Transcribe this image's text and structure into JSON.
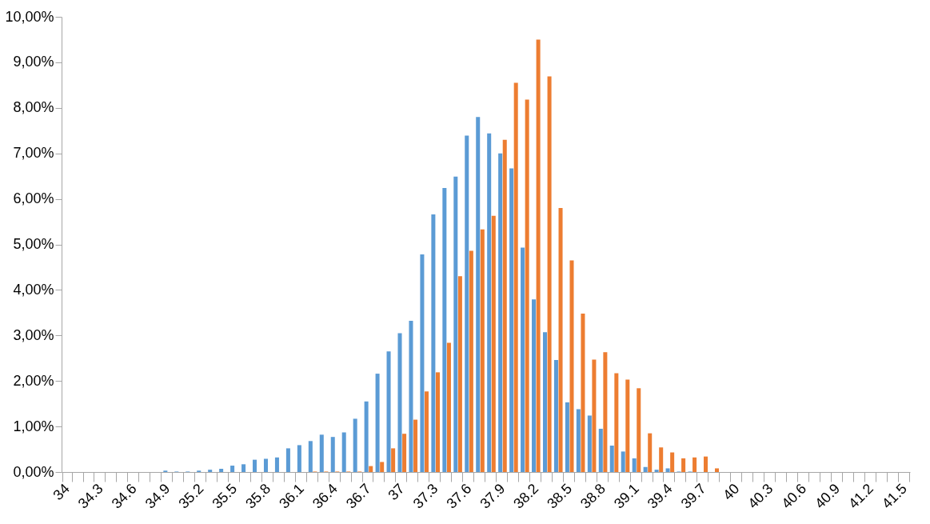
{
  "chart_data": {
    "type": "bar",
    "categories": [
      "34",
      null,
      null,
      "34.3",
      null,
      null,
      "34.6",
      null,
      null,
      "34.9",
      null,
      null,
      "35.2",
      null,
      null,
      "35.5",
      null,
      null,
      "35.8",
      null,
      null,
      "36.1",
      null,
      null,
      "36.4",
      null,
      null,
      "36.7",
      null,
      null,
      "37",
      null,
      null,
      "37.3",
      null,
      null,
      "37.6",
      null,
      null,
      "37.9",
      null,
      null,
      "38.2",
      null,
      null,
      "38.5",
      null,
      null,
      "38.8",
      null,
      null,
      "39.1",
      null,
      null,
      "39.4",
      null,
      null,
      "39.7",
      null,
      null,
      "40",
      null,
      null,
      "40.3",
      null,
      null,
      "40.6",
      null,
      null,
      "40.9",
      null,
      null,
      "41.2",
      null,
      null,
      "41.5"
    ],
    "series": [
      {
        "color": "#5b9bd5",
        "values": [
          null,
          null,
          null,
          null,
          null,
          null,
          null,
          null,
          null,
          0.03,
          0.01,
          0.01,
          0.03,
          0.05,
          0.07,
          0.14,
          0.17,
          0.27,
          0.29,
          0.32,
          0.52,
          0.59,
          0.68,
          0.82,
          0.77,
          0.87,
          1.17,
          1.55,
          2.16,
          2.65,
          3.05,
          3.32,
          4.78,
          5.66,
          6.24,
          6.49,
          7.39,
          7.8,
          7.44,
          7.0,
          6.67,
          4.93,
          3.79,
          3.07,
          2.46,
          1.53,
          1.38,
          1.24,
          0.95,
          0.58,
          0.45,
          0.3,
          0.11,
          0.05,
          0.08,
          0.01,
          0.01,
          null,
          null,
          null,
          null,
          null,
          null,
          null,
          null,
          null,
          null,
          null,
          null,
          null,
          null,
          null,
          null,
          null,
          null,
          null
        ]
      },
      {
        "color": "#ed7d31",
        "values": [
          null,
          null,
          null,
          null,
          null,
          null,
          null,
          null,
          null,
          null,
          null,
          null,
          null,
          null,
          null,
          null,
          null,
          null,
          null,
          null,
          null,
          null,
          0.01,
          0.01,
          0.01,
          0.01,
          0.01,
          0.13,
          0.22,
          0.52,
          0.84,
          1.15,
          1.77,
          2.19,
          2.84,
          4.3,
          4.86,
          5.33,
          5.63,
          7.3,
          8.55,
          8.18,
          9.5,
          8.69,
          5.8,
          4.65,
          3.48,
          2.47,
          2.63,
          2.17,
          2.03,
          1.84,
          0.85,
          0.54,
          0.43,
          0.3,
          0.32,
          0.34,
          0.08,
          null,
          null,
          null,
          null,
          null,
          null,
          null,
          null,
          null,
          null,
          null,
          null,
          null,
          null,
          null,
          null,
          null
        ]
      }
    ],
    "ylim": [
      0,
      10
    ],
    "yticks": [
      {
        "value": 0,
        "label": "0,00%"
      },
      {
        "value": 1,
        "label": "1,00%"
      },
      {
        "value": 2,
        "label": "2,00%"
      },
      {
        "value": 3,
        "label": "3,00%"
      },
      {
        "value": 4,
        "label": "4,00%"
      },
      {
        "value": 5,
        "label": "5,00%"
      },
      {
        "value": 6,
        "label": "6,00%"
      },
      {
        "value": 7,
        "label": "7,00%"
      },
      {
        "value": 8,
        "label": "8,00%"
      },
      {
        "value": 9,
        "label": "9,00%"
      },
      {
        "value": 10,
        "label": "10,00%"
      }
    ],
    "grid": false,
    "legend": false
  }
}
